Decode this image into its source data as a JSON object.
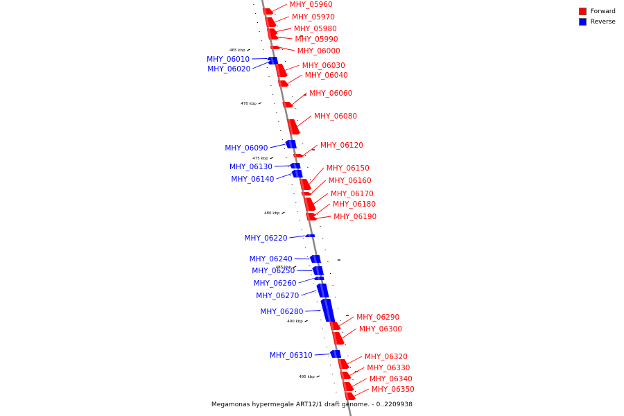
{
  "caption": "Megamonas hypermegale ART12/1 draft genome. - 0..2209938",
  "legend": [
    {
      "label": "Forward",
      "color": "#ff0000"
    },
    {
      "label": "Reverse",
      "color": "#0000ff"
    }
  ],
  "colors": {
    "forward": "#ff0000",
    "reverse": "#0000ff",
    "axis": "#888888"
  },
  "ticks": [
    {
      "label": "465 kbp",
      "kbp": 465
    },
    {
      "label": "470 kbp",
      "kbp": 470
    },
    {
      "label": "475 kbp",
      "kbp": 475
    },
    {
      "label": "480 kbp",
      "kbp": 480
    },
    {
      "label": "485 kbp",
      "kbp": 485
    },
    {
      "label": "490 kbp",
      "kbp": 490
    },
    {
      "label": "495 kbp",
      "kbp": 495
    }
  ],
  "genes": [
    {
      "label": "MHY_05960",
      "strand": "forward"
    },
    {
      "label": "MHY_05970",
      "strand": "forward"
    },
    {
      "label": "MHY_05980",
      "strand": "forward"
    },
    {
      "label": "MHY_05990",
      "strand": "forward"
    },
    {
      "label": "MHY_06000",
      "strand": "forward"
    },
    {
      "label": "MHY_06010",
      "strand": "reverse"
    },
    {
      "label": "MHY_06020",
      "strand": "reverse"
    },
    {
      "label": "MHY_06030",
      "strand": "forward"
    },
    {
      "label": "MHY_06040",
      "strand": "forward"
    },
    {
      "label": "MHY_06060",
      "strand": "forward"
    },
    {
      "label": "MHY_06080",
      "strand": "forward"
    },
    {
      "label": "MHY_06090",
      "strand": "reverse"
    },
    {
      "label": "MHY_06120",
      "strand": "forward"
    },
    {
      "label": "MHY_06130",
      "strand": "reverse"
    },
    {
      "label": "MHY_06140",
      "strand": "reverse"
    },
    {
      "label": "MHY_06150",
      "strand": "forward"
    },
    {
      "label": "MHY_06160",
      "strand": "forward"
    },
    {
      "label": "MHY_06170",
      "strand": "forward"
    },
    {
      "label": "MHY_06180",
      "strand": "forward"
    },
    {
      "label": "MHY_06190",
      "strand": "forward"
    },
    {
      "label": "MHY_06220",
      "strand": "reverse"
    },
    {
      "label": "MHY_06240",
      "strand": "reverse"
    },
    {
      "label": "MHY_06250",
      "strand": "reverse"
    },
    {
      "label": "MHY_06260",
      "strand": "reverse"
    },
    {
      "label": "MHY_06270",
      "strand": "reverse"
    },
    {
      "label": "MHY_06280",
      "strand": "reverse"
    },
    {
      "label": "MHY_06290",
      "strand": "forward"
    },
    {
      "label": "MHY_06300",
      "strand": "forward"
    },
    {
      "label": "MHY_06310",
      "strand": "reverse"
    },
    {
      "label": "MHY_06320",
      "strand": "forward"
    },
    {
      "label": "MHY_06330",
      "strand": "forward"
    },
    {
      "label": "MHY_06340",
      "strand": "forward"
    },
    {
      "label": "MHY_06350",
      "strand": "forward"
    }
  ]
}
